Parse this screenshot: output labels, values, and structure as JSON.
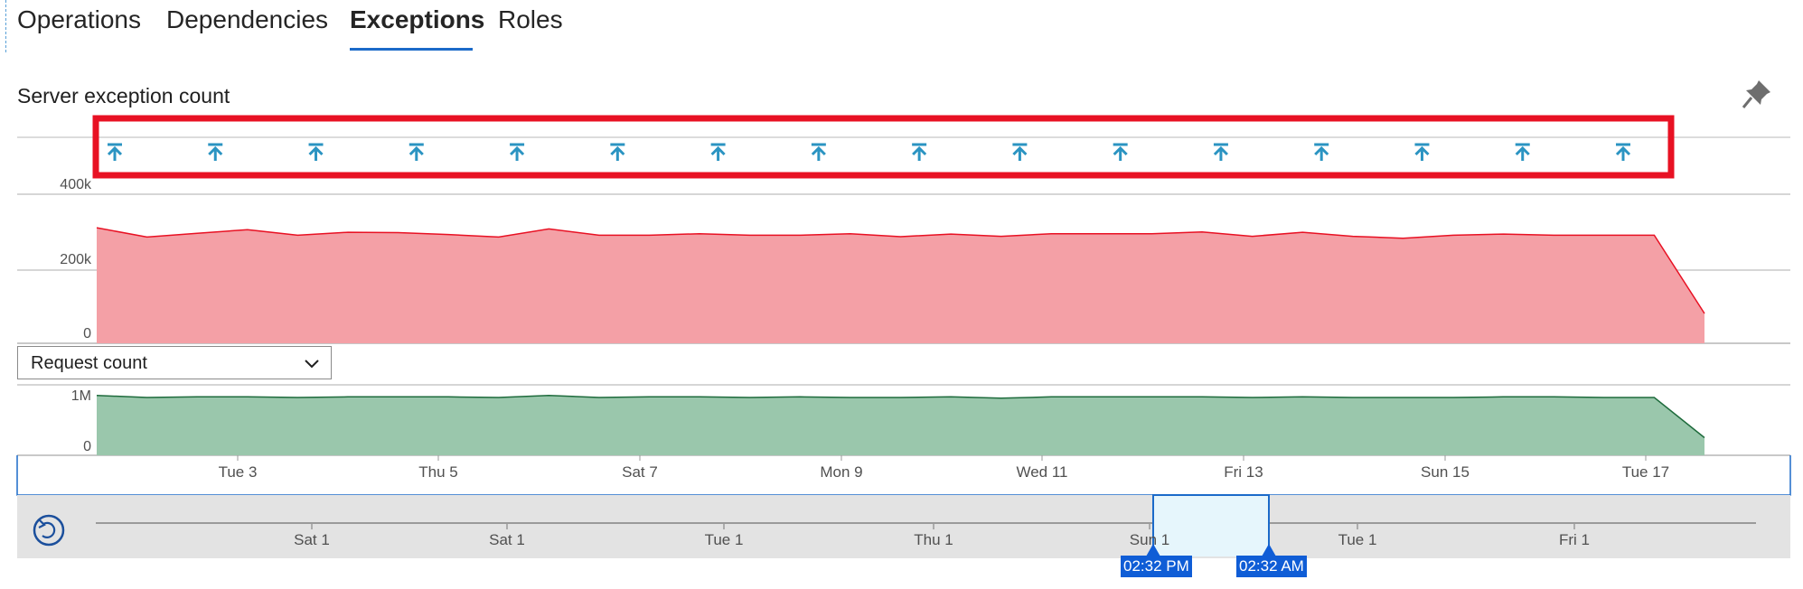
{
  "tabs": [
    {
      "label": "Operations"
    },
    {
      "label": "Dependencies"
    },
    {
      "label": "Exceptions",
      "active": true
    },
    {
      "label": "Roles"
    }
  ],
  "chart": {
    "title": "Server exception count",
    "annotation_icon": "arrow-to-top-icon",
    "annotation_count": 16,
    "highlight_color": "#e81123"
  },
  "chart_data": [
    {
      "type": "area",
      "title": "Server exception count",
      "color": "#f4a0a6",
      "line_color": "#e81123",
      "ylim": [
        0,
        400000
      ],
      "y_ticks": [
        "400k",
        "200k",
        "0"
      ],
      "x_ticks": [
        "Tue 3",
        "Thu 5",
        "Sat 7",
        "Mon 9",
        "Wed 11",
        "Fri 13",
        "Sun 15",
        "Tue 17"
      ],
      "series": [
        {
          "values": [
            310000,
            285000,
            295000,
            305000,
            290000,
            298000,
            297000,
            292000,
            285000,
            307000,
            290000,
            290000,
            294000,
            290000,
            290000,
            294000,
            286000,
            293000,
            287000,
            294000,
            294000,
            294000,
            299000,
            287000,
            298000,
            287000,
            282000,
            290000,
            293000,
            290000,
            290000,
            290000,
            80000
          ]
        }
      ]
    },
    {
      "type": "area",
      "color": "#9ac7ac",
      "line_color": "#1e6b3c",
      "ylim": [
        0,
        1000000
      ],
      "y_ticks": [
        "1M",
        "0"
      ],
      "series": [
        {
          "name": "Request count",
          "values": [
            850000,
            820000,
            830000,
            830000,
            820000,
            830000,
            830000,
            830000,
            820000,
            850000,
            820000,
            830000,
            830000,
            820000,
            830000,
            820000,
            820000,
            830000,
            810000,
            830000,
            830000,
            830000,
            830000,
            820000,
            830000,
            820000,
            820000,
            820000,
            830000,
            830000,
            820000,
            820000,
            250000
          ]
        }
      ]
    }
  ],
  "metric_selector": {
    "value": "Request count",
    "icon": "chevron-down-icon"
  },
  "time_brush": {
    "reset_icon": "undo-icon",
    "ticks": [
      "Sat 1",
      "Sat 1",
      "Tue 1",
      "Thu 1",
      "Sun 1",
      "Tue 1",
      "Fri 1"
    ],
    "start_label": "02:32 PM",
    "end_label": "02:32 AM",
    "selection_color": "#e6f6fc",
    "handle_color": "#0f5dd6"
  }
}
